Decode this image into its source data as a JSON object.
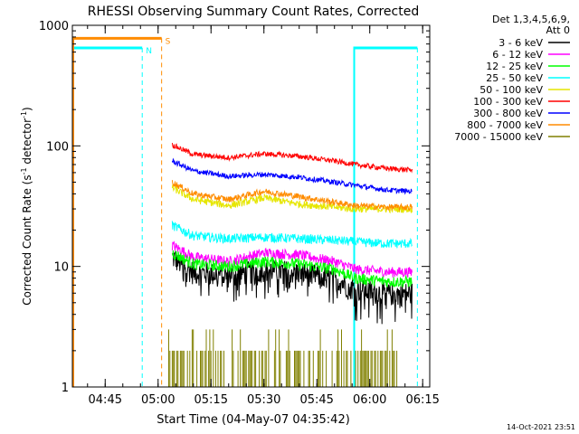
{
  "chart_data": {
    "type": "line",
    "title": "RHESSI Observing Summary Count Rates, Corrected",
    "xlabel": "Start Time (04-May-07 04:35:42)",
    "ylabel_main": "Corrected Count Rate (s",
    "ylabel_sup1": "-1",
    "ylabel_mid": " detector",
    "ylabel_sup2": "-1",
    "ylabel_end": ")",
    "y_scale": "log",
    "ylim": [
      1,
      1000
    ],
    "xlim": [
      "04:35:42",
      "06:17:00"
    ],
    "x_ticks": [
      "04:45",
      "05:00",
      "05:15",
      "05:30",
      "05:45",
      "06:00",
      "06:15"
    ],
    "y_ticks": [
      "1",
      "10",
      "100",
      "1000"
    ],
    "legend_header": [
      "Det 1,3,4,5,6,9,",
      "Att 0"
    ],
    "legend_position": "right",
    "footer_timestamp": "14-Oct-2021 23:51",
    "series": [
      {
        "name": "3 - 6 keV",
        "color": "#000000",
        "x": [
          "05:04",
          "05:10",
          "05:20",
          "05:30",
          "05:40",
          "05:50",
          "05:56",
          "06:05",
          "06:12"
        ],
        "values": [
          12,
          9,
          8.5,
          9.5,
          9,
          8,
          6.5,
          6,
          6
        ]
      },
      {
        "name": "6 - 12 keV",
        "color": "#ff00ff",
        "x": [
          "05:04",
          "05:10",
          "05:20",
          "05:30",
          "05:40",
          "05:50",
          "05:56",
          "06:05",
          "06:12"
        ],
        "values": [
          15,
          12,
          11,
          13,
          12.5,
          11,
          9.5,
          9,
          9
        ]
      },
      {
        "name": "12 - 25 keV",
        "color": "#00ff00",
        "x": [
          "05:04",
          "05:10",
          "05:20",
          "05:30",
          "05:40",
          "05:50",
          "05:56",
          "06:05",
          "06:12"
        ],
        "values": [
          13,
          10.5,
          10,
          11,
          10.5,
          9.5,
          8,
          7.5,
          7.5
        ]
      },
      {
        "name": "25 - 50 keV",
        "color": "#00ffff",
        "x": [
          "05:04",
          "05:10",
          "05:20",
          "05:30",
          "05:40",
          "05:50",
          "05:56",
          "06:05",
          "06:12"
        ],
        "values": [
          22,
          18,
          17,
          17.5,
          17,
          16.5,
          16,
          15.5,
          15.5
        ]
      },
      {
        "name": "50 - 100 keV",
        "color": "#e6e600",
        "x": [
          "05:04",
          "05:10",
          "05:20",
          "05:30",
          "05:40",
          "05:50",
          "05:56",
          "06:05",
          "06:12"
        ],
        "values": [
          45,
          36,
          32,
          37,
          33,
          31,
          30,
          30,
          30
        ]
      },
      {
        "name": "100 - 300 keV",
        "color": "#ff0000",
        "x": [
          "05:04",
          "05:10",
          "05:20",
          "05:30",
          "05:40",
          "05:50",
          "05:56",
          "06:05",
          "06:12"
        ],
        "values": [
          102,
          85,
          80,
          86,
          82,
          75,
          70,
          65,
          63
        ]
      },
      {
        "name": "300 - 800 keV",
        "color": "#0000ff",
        "x": [
          "05:04",
          "05:10",
          "05:20",
          "05:30",
          "05:40",
          "05:50",
          "05:56",
          "06:05",
          "06:12"
        ],
        "values": [
          75,
          62,
          56,
          58,
          55,
          50,
          47,
          43,
          42
        ]
      },
      {
        "name": "800 - 7000 keV",
        "color": "#ff8c00",
        "x": [
          "05:04",
          "05:10",
          "05:20",
          "05:30",
          "05:40",
          "05:50",
          "05:56",
          "06:05",
          "06:12"
        ],
        "values": [
          50,
          40,
          36,
          42,
          38,
          34,
          32,
          31,
          31
        ]
      },
      {
        "name": "7000 - 15000 keV",
        "color": "#808000",
        "x": [
          "05:03",
          "05:06",
          "05:26",
          "05:33",
          "05:38",
          "05:45",
          "05:52",
          "06:05",
          "06:08"
        ],
        "values": [
          2,
          2,
          3,
          2,
          2,
          2,
          2,
          2,
          2
        ]
      }
    ],
    "annotations": [
      {
        "label": "N",
        "color": "#00ffff",
        "kind": "night",
        "from": "04:35:42",
        "to": "04:55:30",
        "level": 650
      },
      {
        "label": "S",
        "color": "#ff8c00",
        "kind": "saa",
        "from": "04:35:42",
        "to": "05:01:00",
        "level": 780
      },
      {
        "label": "",
        "color": "#00ffff",
        "kind": "night",
        "from": "05:55:20",
        "to": "06:13:30",
        "level": 650
      }
    ]
  }
}
